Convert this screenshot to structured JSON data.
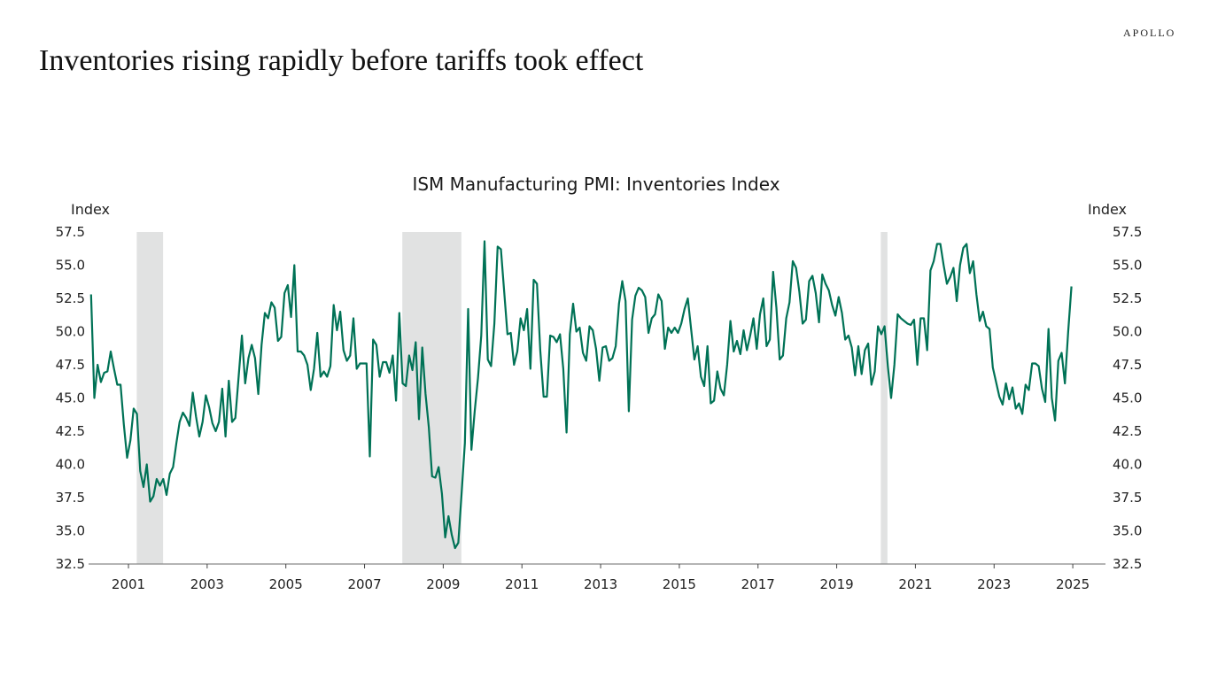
{
  "slide": {
    "title": "Inventories rising rapidly before tariffs took effect",
    "brand": "APOLLO"
  },
  "colors": {
    "line": "#007256",
    "recession": "#e1e2e2",
    "axis": "#888888",
    "text": "#222222"
  },
  "chart_data": {
    "type": "line",
    "title": "ISM Manufacturing PMI: Inventories Index",
    "ylabel_left": "Index",
    "ylabel_right": "Index",
    "xlabel": "",
    "ylim": [
      32.5,
      57.5
    ],
    "yticks": [
      "57.5",
      "55.0",
      "52.5",
      "50.0",
      "47.5",
      "45.0",
      "42.5",
      "40.0",
      "37.5",
      "35.0",
      "32.5"
    ],
    "ytick_values": [
      57.5,
      55.0,
      52.5,
      50.0,
      47.5,
      45.0,
      42.5,
      40.0,
      37.5,
      35.0,
      32.5
    ],
    "xlim": [
      2000.0,
      2025.75
    ],
    "xticks": [
      "2001",
      "2003",
      "2005",
      "2007",
      "2009",
      "2011",
      "2013",
      "2015",
      "2017",
      "2019",
      "2021",
      "2023",
      "2025"
    ],
    "xtick_values": [
      2001,
      2003,
      2005,
      2007,
      2009,
      2011,
      2013,
      2015,
      2017,
      2019,
      2021,
      2023,
      2025
    ],
    "grid": false,
    "legend": "none",
    "recessions": [
      {
        "start": 2001.21,
        "end": 2001.88
      },
      {
        "start": 2007.96,
        "end": 2009.46
      },
      {
        "start": 2020.12,
        "end": 2020.29
      }
    ],
    "series": [
      {
        "name": "ISM Manufacturing PMI: Inventories Index",
        "frequency": "monthly",
        "start": "2000-01",
        "values": [
          52.8,
          45.0,
          47.5,
          46.2,
          46.9,
          47.0,
          48.5,
          47.2,
          46.0,
          46.0,
          43.0,
          40.5,
          41.8,
          44.2,
          43.8,
          39.5,
          38.3,
          40.0,
          37.2,
          37.6,
          38.9,
          38.4,
          38.9,
          37.7,
          39.3,
          39.8,
          41.6,
          43.2,
          43.9,
          43.5,
          42.9,
          45.4,
          43.6,
          42.1,
          43.2,
          45.2,
          44.3,
          43.1,
          42.5,
          43.2,
          45.7,
          42.1,
          46.3,
          43.2,
          43.5,
          46.6,
          49.7,
          46.1,
          48.0,
          49.0,
          48.0,
          45.3,
          49.0,
          51.4,
          51.0,
          52.2,
          51.8,
          49.3,
          49.6,
          52.9,
          53.5,
          51.1,
          55.0,
          48.5,
          48.5,
          48.2,
          47.5,
          45.6,
          47.2,
          49.9,
          46.6,
          47.0,
          46.6,
          47.4,
          52.0,
          50.1,
          51.5,
          48.6,
          47.8,
          48.2,
          51.0,
          47.2,
          47.6,
          47.6,
          47.6,
          40.6,
          49.4,
          49.0,
          46.6,
          47.7,
          47.7,
          46.9,
          48.2,
          44.8,
          51.4,
          46.1,
          45.9,
          48.2,
          47.1,
          49.2,
          43.4,
          48.8,
          45.3,
          42.8,
          39.1,
          39.0,
          39.8,
          37.8,
          34.5,
          36.1,
          34.7,
          33.7,
          34.1,
          37.8,
          41.6,
          51.7,
          41.1,
          44.0,
          46.5,
          49.7,
          56.8,
          47.9,
          47.4,
          50.6,
          56.4,
          56.2,
          53.0,
          49.8,
          49.9,
          47.5,
          48.5,
          51.0,
          50.1,
          51.7,
          47.2,
          53.9,
          53.6,
          48.6,
          45.1,
          45.1,
          49.7,
          49.6,
          49.2,
          49.8,
          47.2,
          42.4,
          49.8,
          52.1,
          50.0,
          50.3,
          48.4,
          47.8,
          50.4,
          50.1,
          48.7,
          46.3,
          48.8,
          48.9,
          47.8,
          48.0,
          48.9,
          52.1,
          53.8,
          52.3,
          44.0,
          50.9,
          52.7,
          53.3,
          53.1,
          52.6,
          49.9,
          51.0,
          51.3,
          52.8,
          52.3,
          48.7,
          50.3,
          49.9,
          50.3,
          49.9,
          50.6,
          51.7,
          52.5,
          50.2,
          47.9,
          48.9,
          46.6,
          45.9,
          48.9,
          44.6,
          44.8,
          47.0,
          45.7,
          45.2,
          47.5,
          50.8,
          48.5,
          49.3,
          48.3,
          50.1,
          48.6,
          49.7,
          51.0,
          48.7,
          51.3,
          52.5,
          48.9,
          49.4,
          54.5,
          51.8,
          47.9,
          48.2,
          51.0,
          52.2,
          55.3,
          54.8,
          53.0,
          50.6,
          50.9,
          53.8,
          54.2,
          52.9,
          50.7,
          54.3,
          53.6,
          53.1,
          52.0,
          51.2,
          52.6,
          51.4,
          49.4,
          49.7,
          48.8,
          46.7,
          48.9,
          46.8,
          48.6,
          49.1,
          46.0,
          47.0,
          50.4,
          49.8,
          50.4,
          47.4,
          45.0,
          47.5,
          51.3,
          51.0,
          50.8,
          50.6,
          50.5,
          50.9,
          47.5,
          51.0,
          51.0,
          48.6,
          54.6,
          55.3,
          56.6,
          56.6,
          55.0,
          53.6,
          54.1,
          54.8,
          52.3,
          55.0,
          56.3,
          56.6,
          54.4,
          55.3,
          52.8,
          50.8,
          51.5,
          50.4,
          50.2,
          47.3,
          46.2,
          45.1,
          44.5,
          46.1,
          44.9,
          45.8,
          44.2,
          44.6,
          43.8,
          46.0,
          45.6,
          47.6,
          47.6,
          47.4,
          45.7,
          44.7,
          50.2,
          45.0,
          43.3,
          47.8,
          48.4,
          46.1,
          50.0,
          53.4
        ]
      }
    ]
  }
}
